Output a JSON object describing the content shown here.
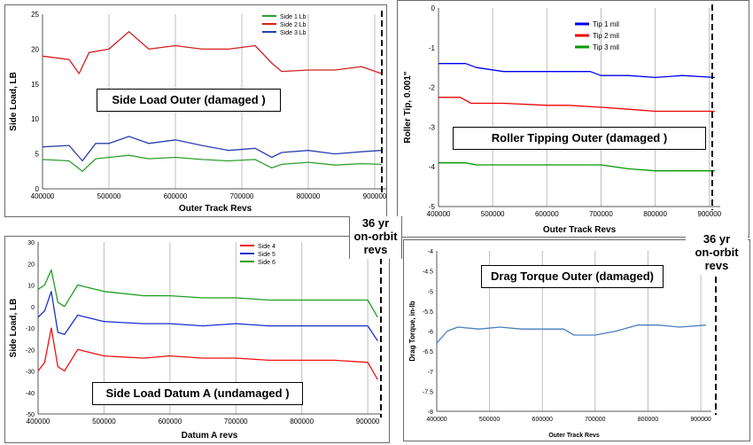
{
  "charts": {
    "a": {
      "callout": "Side Load  Outer (damaged )",
      "chart_data": {
        "type": "line",
        "xlabel": "Outer Track Revs",
        "ylabel": "Side Load, LB",
        "xlim": [
          400000,
          920000
        ],
        "ylim": [
          0,
          25
        ],
        "xticks": [
          "400000",
          "500000",
          "600000",
          "700000",
          "800000",
          "900000"
        ],
        "yticks": [
          "0",
          "5",
          "10",
          "15",
          "20",
          "25"
        ],
        "grid": "vertical",
        "legend": "top-right",
        "series": [
          {
            "name": "Side 1 Lb",
            "color": "#2e9e2e",
            "x": [
              400000,
              440000,
              460000,
              480000,
              500000,
              530000,
              560000,
              600000,
              640000,
              680000,
              720000,
              745000,
              760000,
              800000,
              840000,
              880000,
              910000
            ],
            "y": [
              4.2,
              4.0,
              2.5,
              4.3,
              4.5,
              4.8,
              4.3,
              4.5,
              4.2,
              4.0,
              4.2,
              3.0,
              3.5,
              3.8,
              3.4,
              3.6,
              3.5
            ]
          },
          {
            "name": "Side 2 Lb",
            "color": "#d42020",
            "x": [
              400000,
              440000,
              455000,
              470000,
              500000,
              530000,
              560000,
              600000,
              640000,
              680000,
              720000,
              745000,
              760000,
              800000,
              840000,
              880000,
              910000
            ],
            "y": [
              19.0,
              18.5,
              16.5,
              19.5,
              20.0,
              22.5,
              20.0,
              20.5,
              20.0,
              20.0,
              20.5,
              18.0,
              16.8,
              17.0,
              17.0,
              17.5,
              16.5
            ]
          },
          {
            "name": "Side 3 Lb",
            "color": "#2a3fae",
            "x": [
              400000,
              440000,
              460000,
              480000,
              500000,
              530000,
              560000,
              600000,
              640000,
              680000,
              720000,
              745000,
              760000,
              800000,
              840000,
              880000,
              910000
            ],
            "y": [
              6.0,
              6.2,
              4.0,
              6.5,
              6.5,
              7.5,
              6.5,
              7.0,
              6.2,
              5.5,
              5.8,
              4.5,
              5.2,
              5.5,
              5.0,
              5.3,
              5.5
            ]
          }
        ]
      }
    },
    "b": {
      "callout": "Roller Tipping  Outer (damaged )",
      "chart_data": {
        "type": "line",
        "xlabel": "Outer Track Revs",
        "ylabel": "Roller Tip, 0.001\"",
        "xlim": [
          400000,
          920000
        ],
        "ylim": [
          -5,
          0
        ],
        "xticks": [
          "400000",
          "500000",
          "600000",
          "700000",
          "800000",
          "900000"
        ],
        "yticks": [
          "-5",
          "-4",
          "-3",
          "-2",
          "-1",
          "0"
        ],
        "grid": "vertical",
        "legend": "top-center",
        "series": [
          {
            "name": "Tip 1 mil",
            "color": "#0000ee",
            "x": [
              400000,
              450000,
              470000,
              520000,
              560000,
              600000,
              640000,
              680000,
              700000,
              750000,
              800000,
              850000,
              910000
            ],
            "y": [
              -1.4,
              -1.4,
              -1.5,
              -1.6,
              -1.6,
              -1.6,
              -1.6,
              -1.6,
              -1.7,
              -1.7,
              -1.75,
              -1.7,
              -1.75
            ]
          },
          {
            "name": "Tip 2 mil",
            "color": "#ee0000",
            "x": [
              400000,
              440000,
              460000,
              520000,
              600000,
              640000,
              700000,
              750000,
              800000,
              850000,
              910000
            ],
            "y": [
              -2.25,
              -2.25,
              -2.4,
              -2.4,
              -2.45,
              -2.45,
              -2.5,
              -2.55,
              -2.6,
              -2.6,
              -2.6
            ]
          },
          {
            "name": "Tip 3 mil",
            "color": "#009900",
            "x": [
              400000,
              450000,
              470000,
              520000,
              600000,
              700000,
              750000,
              800000,
              850000,
              910000
            ],
            "y": [
              -3.9,
              -3.9,
              -3.95,
              -3.95,
              -3.95,
              -3.95,
              -4.05,
              -4.1,
              -4.1,
              -4.1
            ]
          }
        ]
      }
    },
    "c": {
      "callout": "Side Load  Datum A (undamaged )",
      "chart_data": {
        "type": "line",
        "xlabel": "Datum A revs",
        "ylabel": "Side Load, LB",
        "xlim": [
          400000,
          920000
        ],
        "ylim": [
          -50,
          30
        ],
        "xticks": [
          "400000",
          "500000",
          "600000",
          "700000",
          "800000",
          "900000"
        ],
        "yticks": [
          "-50",
          "-40",
          "-30",
          "-20",
          "-10",
          "0",
          "10",
          "20",
          "30"
        ],
        "grid": "vertical",
        "legend": "top-left",
        "series": [
          {
            "name": "Side 4",
            "color": "#ee1111",
            "x": [
              400000,
              410000,
              420000,
              430000,
              440000,
              460000,
              500000,
              560000,
              600000,
              650000,
              700000,
              750000,
              800000,
              850000,
              900000,
              915000
            ],
            "y": [
              -30,
              -26,
              -10,
              -28,
              -30,
              -20,
              -23,
              -24,
              -23,
              -24,
              -24,
              -25,
              -25,
              -25,
              -26,
              -34
            ]
          },
          {
            "name": "Side 5",
            "color": "#1a2fd0",
            "x": [
              400000,
              410000,
              420000,
              430000,
              440000,
              460000,
              500000,
              560000,
              600000,
              650000,
              700000,
              750000,
              800000,
              850000,
              900000,
              915000
            ],
            "y": [
              -5,
              -2,
              7,
              -12,
              -13,
              -4,
              -7,
              -8,
              -8,
              -9,
              -8,
              -9,
              -9,
              -9,
              -9,
              -16
            ]
          },
          {
            "name": "Side 6",
            "color": "#1e9e1e",
            "x": [
              400000,
              410000,
              420000,
              430000,
              440000,
              460000,
              500000,
              560000,
              600000,
              650000,
              700000,
              750000,
              800000,
              850000,
              900000,
              915000
            ],
            "y": [
              8,
              10,
              17,
              2,
              0,
              10,
              7,
              5,
              5,
              4,
              4,
              3,
              3,
              3,
              3,
              -5
            ]
          }
        ]
      }
    },
    "d": {
      "callout": "Drag Torque  Outer (damaged)",
      "chart_data": {
        "type": "line",
        "xlabel": "Outer Track Revs",
        "ylabel": "Drag Torque, in-lb",
        "xlim": [
          400000,
          920000
        ],
        "ylim": [
          -8,
          -4
        ],
        "xticks": [
          "400000",
          "500000",
          "600000",
          "700000",
          "800000",
          "900000"
        ],
        "yticks": [
          "-8",
          "-7.5",
          "-7",
          "-6.5",
          "-6",
          "-5.5",
          "-5",
          "-4.5",
          "-4"
        ],
        "grid": "vertical",
        "series": [
          {
            "name": "",
            "color": "#4a7fc1",
            "x": [
              400000,
              420000,
              440000,
              480000,
              520000,
              560000,
              600000,
              640000,
              660000,
              700000,
              740000,
              780000,
              820000,
              860000,
              910000
            ],
            "y": [
              -6.3,
              -6.0,
              -5.9,
              -5.95,
              -5.9,
              -5.95,
              -5.95,
              -5.95,
              -6.1,
              -6.1,
              -6.0,
              -5.85,
              -5.85,
              -5.9,
              -5.85
            ]
          }
        ]
      }
    }
  },
  "annotations": {
    "rev_note_left": [
      "36 yr",
      "on-orbit",
      "revs"
    ],
    "rev_note_right": [
      "36 yr",
      "on-orbit",
      "revs"
    ]
  }
}
